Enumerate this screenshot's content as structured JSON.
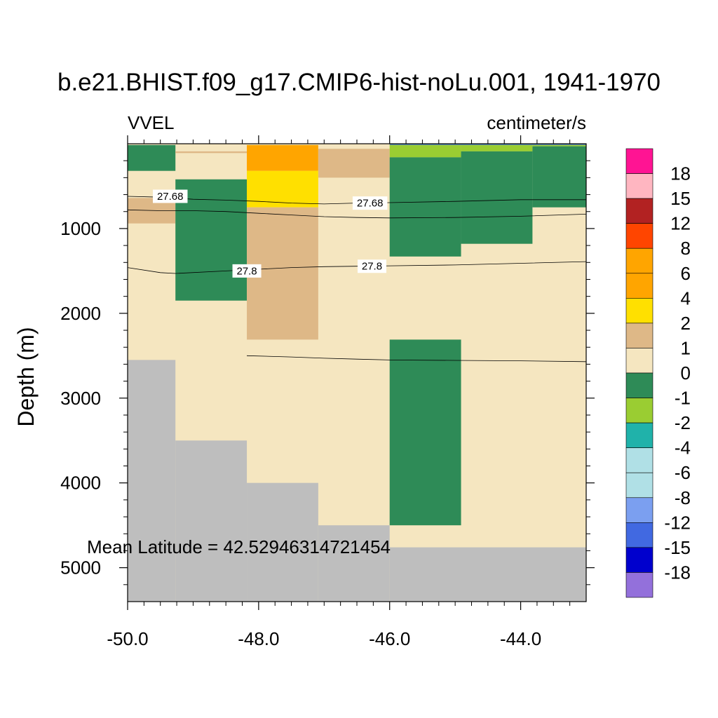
{
  "title": "b.e21.BHIST.f09_g17.CMIP6-hist-noLu.001, 1941-1970",
  "left_string": "VVEL",
  "right_string": "centimeter/s",
  "annotation": "Mean Latitude = 42.52946314721454",
  "chart_data": {
    "type": "heatmap",
    "xlabel": "",
    "ylabel": "Depth (m)",
    "xlim": [
      -50.0,
      -43.0
    ],
    "ylim": [
      5400,
      0
    ],
    "x_ticks": [
      -50.0,
      -48.0,
      -46.0,
      -44.0
    ],
    "x_tick_labels": [
      "-50.0",
      "-48.0",
      "-46.0",
      "-44.0"
    ],
    "y_ticks": [
      1000,
      2000,
      3000,
      4000,
      5000
    ],
    "y_tick_labels": [
      "1000",
      "2000",
      "3000",
      "4000",
      "5000"
    ],
    "units": "centimeter/s",
    "colorbar": {
      "levels": [
        "18",
        "15",
        "12",
        "8",
        "6",
        "4",
        "2",
        "1",
        "0",
        "-1",
        "-2",
        "-4",
        "-6",
        "-8",
        "-12",
        "-15",
        "-18"
      ],
      "colors": [
        "#ff1493",
        "#ffb6c1",
        "#b22222",
        "#ff4500",
        "#ffa500",
        "#ffa500",
        "#ffe000",
        "#deb887",
        "#f5e6c0",
        "#2e8b57",
        "#9acd32",
        "#20b2aa",
        "#b0e0e6",
        "#b0e0e6",
        "#7b9ff0",
        "#4169e1",
        "#0000cd",
        "#9370db"
      ]
    },
    "land_color": "#bebebe",
    "background_color": "#f5e6c0",
    "cells": [
      {
        "x": [
          -50.0,
          -49.27
        ],
        "y": [
          15,
          320
        ],
        "color": "#2e8b57"
      },
      {
        "x": [
          -49.27,
          -48.18
        ],
        "y": [
          90,
          110
        ],
        "color": "#deb887"
      },
      {
        "x": [
          -48.18,
          -47.09
        ],
        "y": [
          15,
          320
        ],
        "color": "#ffa500"
      },
      {
        "x": [
          -48.18,
          -47.09
        ],
        "y": [
          320,
          750
        ],
        "color": "#ffe000"
      },
      {
        "x": [
          -47.09,
          -46.0
        ],
        "y": [
          60,
          400
        ],
        "color": "#deb887"
      },
      {
        "x": [
          -46.0,
          -44.91
        ],
        "y": [
          15,
          160
        ],
        "color": "#9acd32"
      },
      {
        "x": [
          -44.91,
          -43.82
        ],
        "y": [
          15,
          90
        ],
        "color": "#9acd32"
      },
      {
        "x": [
          -43.82,
          -43.0
        ],
        "y": [
          15,
          30
        ],
        "color": "#9acd32"
      },
      {
        "x": [
          -46.0,
          -44.91
        ],
        "y": [
          160,
          1330
        ],
        "color": "#2e8b57"
      },
      {
        "x": [
          -44.91,
          -43.82
        ],
        "y": [
          90,
          1180
        ],
        "color": "#2e8b57"
      },
      {
        "x": [
          -43.82,
          -43.0
        ],
        "y": [
          30,
          750
        ],
        "color": "#2e8b57"
      },
      {
        "x": [
          -50.0,
          -49.27
        ],
        "y": [
          640,
          940
        ],
        "color": "#deb887"
      },
      {
        "x": [
          -49.27,
          -48.18
        ],
        "y": [
          420,
          1850
        ],
        "color": "#2e8b57"
      },
      {
        "x": [
          -48.18,
          -47.09
        ],
        "y": [
          750,
          2310
        ],
        "color": "#deb887"
      },
      {
        "x": [
          -46.0,
          -44.91
        ],
        "y": [
          2310,
          4500
        ],
        "color": "#2e8b57"
      },
      {
        "x": [
          -46.0,
          -43.0
        ],
        "y": [
          0,
          15
        ],
        "color": "#4682b4"
      }
    ],
    "land": [
      {
        "x": [
          -50.0,
          -49.27
        ],
        "y": [
          2550,
          5400
        ]
      },
      {
        "x": [
          -49.27,
          -48.18
        ],
        "y": [
          3500,
          5400
        ]
      },
      {
        "x": [
          -48.18,
          -47.09
        ],
        "y": [
          4000,
          5400
        ]
      },
      {
        "x": [
          -47.09,
          -46.0
        ],
        "y": [
          4500,
          5400
        ]
      },
      {
        "x": [
          -46.0,
          -43.0
        ],
        "y": [
          4760,
          5400
        ]
      }
    ],
    "contours": [
      {
        "label": "27.68",
        "points": [
          [
            -50.0,
            620
          ],
          [
            -49.5,
            630
          ],
          [
            -49.0,
            655
          ],
          [
            -48.5,
            665
          ],
          [
            -48.0,
            680
          ],
          [
            -47.5,
            700
          ],
          [
            -47.0,
            710
          ],
          [
            -46.5,
            700
          ],
          [
            -46.0,
            695
          ],
          [
            -45.0,
            680
          ],
          [
            -44.0,
            660
          ],
          [
            -43.0,
            660
          ]
        ],
        "label_positions": [
          [
            -49.35,
            620
          ],
          [
            -46.3,
            700
          ]
        ]
      },
      {
        "points": [
          [
            -50.0,
            780
          ],
          [
            -49.5,
            790
          ],
          [
            -49.0,
            790
          ],
          [
            -48.5,
            800
          ],
          [
            -48.0,
            820
          ],
          [
            -47.5,
            840
          ],
          [
            -47.0,
            860
          ],
          [
            -46.5,
            870
          ],
          [
            -46.0,
            875
          ],
          [
            -45.0,
            870
          ],
          [
            -44.0,
            855
          ],
          [
            -43.0,
            830
          ]
        ],
        "label_positions": []
      },
      {
        "label": "27.8",
        "points": [
          [
            -50.0,
            1460
          ],
          [
            -49.5,
            1520
          ],
          [
            -49.27,
            1530
          ],
          [
            -48.5,
            1500
          ],
          [
            -48.0,
            1480
          ],
          [
            -47.5,
            1460
          ],
          [
            -47.0,
            1450
          ],
          [
            -46.5,
            1445
          ],
          [
            -46.0,
            1440
          ],
          [
            -45.0,
            1430
          ],
          [
            -44.0,
            1410
          ],
          [
            -43.0,
            1390
          ]
        ],
        "label_positions": [
          [
            -48.18,
            1500
          ],
          [
            -46.27,
            1445
          ]
        ]
      },
      {
        "points": [
          [
            -48.18,
            2500
          ],
          [
            -47.5,
            2515
          ],
          [
            -47.0,
            2530
          ],
          [
            -46.5,
            2540
          ],
          [
            -46.0,
            2550
          ],
          [
            -45.0,
            2555
          ],
          [
            -44.0,
            2560
          ],
          [
            -43.0,
            2570
          ]
        ],
        "label_positions": []
      }
    ]
  }
}
